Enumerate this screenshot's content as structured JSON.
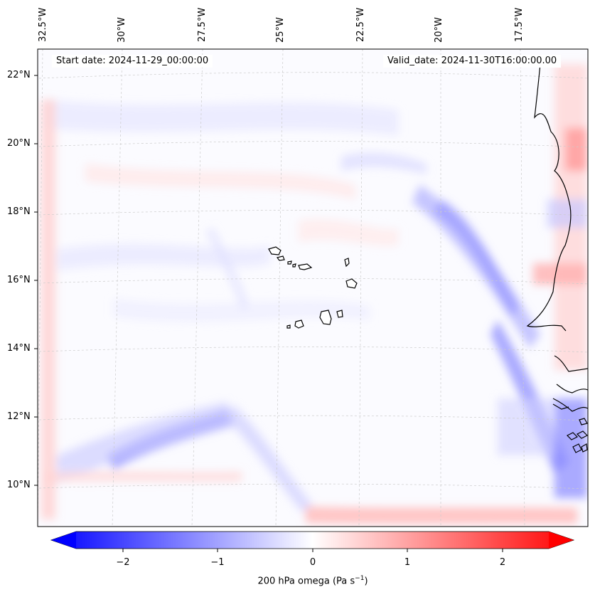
{
  "map": {
    "start_date": "Start date: 2024-11-29_00:00:00",
    "valid_date": "Valid_date: 2024-11-30T16:00:00.00",
    "lon_labels": [
      "32.5°W",
      "30°W",
      "27.5°W",
      "25°W",
      "22.5°W",
      "20°W",
      "17.5°W"
    ],
    "lat_labels": [
      "22°N",
      "20°N",
      "18°N",
      "16°N",
      "14°N",
      "12°N",
      "10°N"
    ],
    "colors": {
      "negative": "#0000ff",
      "positive": "#ff0000",
      "neutral": "#ffffff",
      "coastline": "#000000",
      "gridline": "#c8c8c8"
    }
  },
  "colorbar": {
    "ticks": [
      "−2",
      "−1",
      "0",
      "1",
      "2"
    ],
    "label_main": "200 hPa omega (Pa s",
    "label_exp": "−1",
    "label_close": ")",
    "range": [
      -2.5,
      2.5
    ],
    "extend": "both",
    "colormap": "bwr"
  }
}
